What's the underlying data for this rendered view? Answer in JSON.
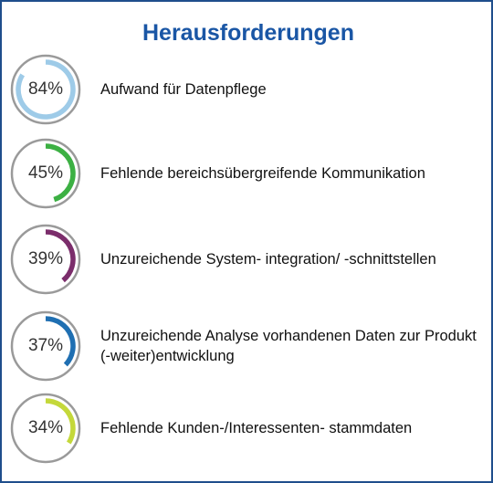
{
  "chart_data": {
    "type": "donut",
    "title": "Herausforderungen",
    "max": 100,
    "items": [
      {
        "value": 84,
        "value_label": "84%",
        "label": "Aufwand für Datenpflege",
        "color": "#9ecbe8"
      },
      {
        "value": 45,
        "value_label": "45%",
        "label": "Fehlende bereichsübergreifende Kommunikation",
        "color": "#3cb043"
      },
      {
        "value": 39,
        "value_label": "39%",
        "label": "Unzureichende System- integration/ -schnittstellen",
        "color": "#7b2d6b"
      },
      {
        "value": 37,
        "value_label": "37%",
        "label": "Unzureichende Analyse vorhandenen Daten zur Produkt (-weiter)entwicklung",
        "color": "#1f6fb2"
      },
      {
        "value": 34,
        "value_label": "34%",
        "label": "Fehlende Kunden-/Interessenten- stammdaten",
        "color": "#c4d83a"
      }
    ]
  },
  "colors": {
    "title": "#1a56a5",
    "border": "#1f4e8c",
    "ring_outline": "#9a9a9a"
  }
}
